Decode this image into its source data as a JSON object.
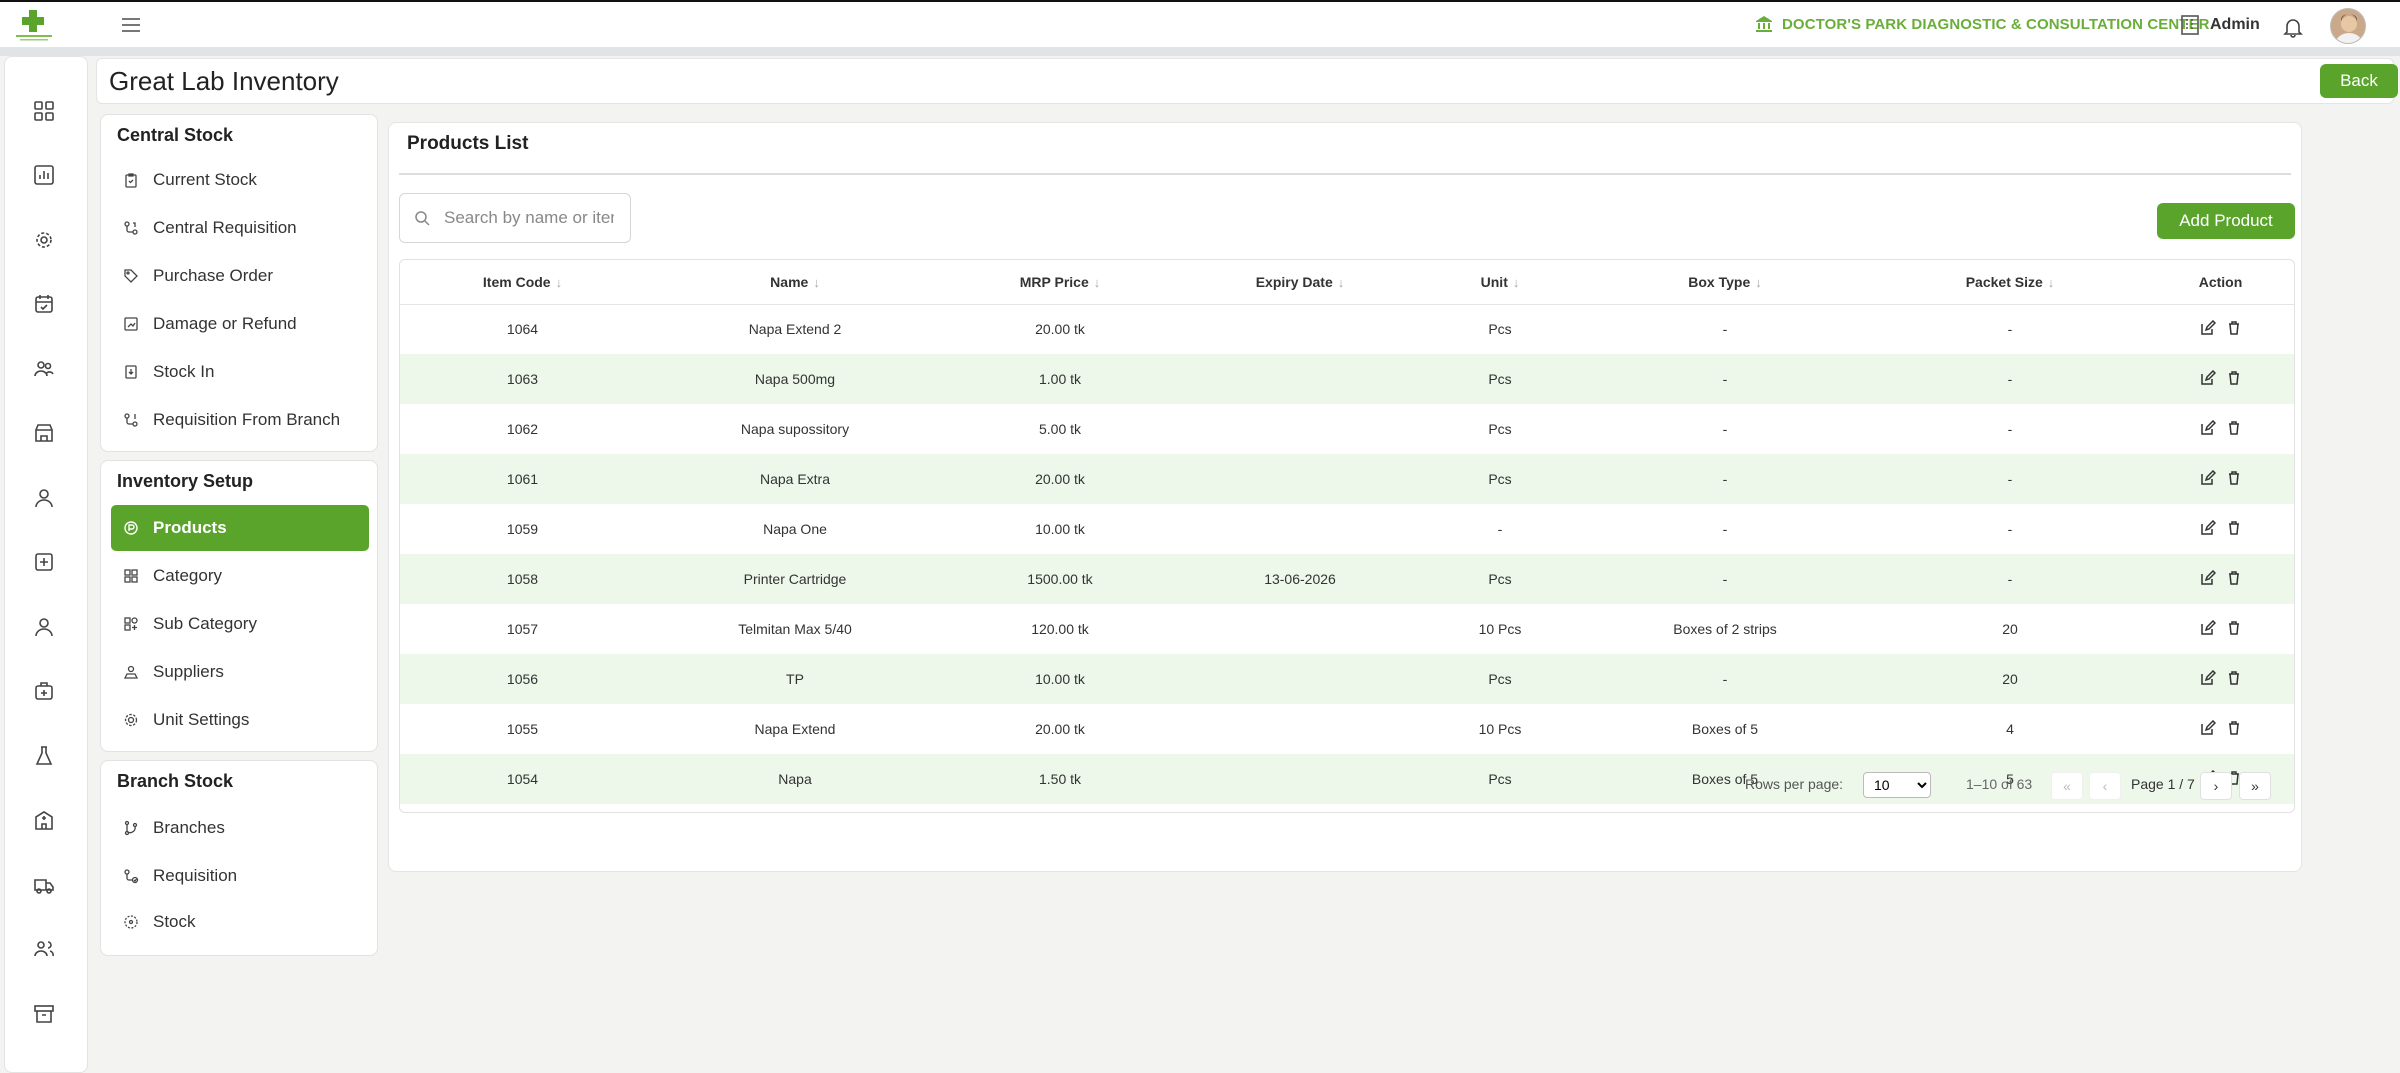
{
  "header": {
    "center_name": "DOCTOR'S PARK DIAGNOSTIC & CONSULTATION CENTER",
    "user": "Admin"
  },
  "rail": {
    "icons": [
      "dashboard-icon",
      "chart-icon",
      "settings-icon",
      "calendar-icon",
      "users-icon",
      "store-icon",
      "user-icon",
      "hospital-icon",
      "person-icon",
      "medical-kit-icon",
      "flask-icon",
      "building-icon",
      "ambulance-icon",
      "team-icon",
      "archive-icon"
    ]
  },
  "page": {
    "title": "Great Lab Inventory",
    "back_label": "Back"
  },
  "central_stock": {
    "heading": "Central Stock",
    "items": [
      {
        "label": "Current Stock",
        "icon": "clipboard-icon"
      },
      {
        "label": "Central Requisition",
        "icon": "requisition-icon"
      },
      {
        "label": "Purchase Order",
        "icon": "tag-icon"
      },
      {
        "label": "Damage or Refund",
        "icon": "damage-icon"
      },
      {
        "label": "Stock In",
        "icon": "stock-in-icon"
      },
      {
        "label": "Requisition From Branch",
        "icon": "branch-requisition-icon"
      }
    ]
  },
  "inventory_setup": {
    "heading": "Inventory Setup",
    "items": [
      {
        "label": "Products",
        "icon": "product-icon"
      },
      {
        "label": "Category",
        "icon": "grid-icon"
      },
      {
        "label": "Sub Category",
        "icon": "subgrid-icon"
      },
      {
        "label": "Suppliers",
        "icon": "supplier-icon"
      },
      {
        "label": "Unit Settings",
        "icon": "gear-icon"
      }
    ]
  },
  "branch_stock": {
    "heading": "Branch Stock",
    "items": [
      {
        "label": "Branches",
        "icon": "branch-icon"
      },
      {
        "label": "Requisition",
        "icon": "requisition-icon"
      },
      {
        "label": "Stock",
        "icon": "stock-icon"
      }
    ]
  },
  "products": {
    "title": "Products List",
    "search_placeholder": "Search by name or item code",
    "add_label": "Add Product",
    "columns": [
      "Item Code",
      "Name",
      "MRP Price",
      "Expiry Date",
      "Unit",
      "Box Type",
      "Packet Size",
      "Action"
    ],
    "rows": [
      [
        "1064",
        "Napa Extend 2",
        "20.00 tk",
        "",
        "Pcs",
        "-",
        "-"
      ],
      [
        "1063",
        "Napa 500mg",
        "1.00 tk",
        "",
        "Pcs",
        "-",
        "-"
      ],
      [
        "1062",
        "Napa supossitory",
        "5.00 tk",
        "",
        "Pcs",
        "-",
        "-"
      ],
      [
        "1061",
        "Napa Extra",
        "20.00 tk",
        "",
        "Pcs",
        "-",
        "-"
      ],
      [
        "1059",
        "Napa One",
        "10.00 tk",
        "",
        "-",
        "-",
        "-"
      ],
      [
        "1058",
        "Printer Cartridge",
        "1500.00 tk",
        "13-06-2026",
        "Pcs",
        "-",
        "-"
      ],
      [
        "1057",
        "Telmitan Max 5/40",
        "120.00 tk",
        "",
        "10 Pcs",
        "Boxes of 2 strips",
        "20"
      ],
      [
        "1056",
        "TP",
        "10.00 tk",
        "",
        "Pcs",
        "-",
        "20"
      ],
      [
        "1055",
        "Napa Extend",
        "20.00 tk",
        "",
        "10 Pcs",
        "Boxes of 5",
        "4"
      ],
      [
        "1054",
        "Napa",
        "1.50 tk",
        "",
        "Pcs",
        "Boxes of 5",
        "5"
      ]
    ],
    "pagination": {
      "rows_per_page_label": "Rows per page:",
      "rows_per_page": "10",
      "range": "1–10 of 63",
      "page_label": "Page 1 / 7"
    }
  },
  "colors": {
    "accent": "#5aa42c",
    "row_alt": "#edf8ea",
    "center_name": "#6aae3a"
  }
}
